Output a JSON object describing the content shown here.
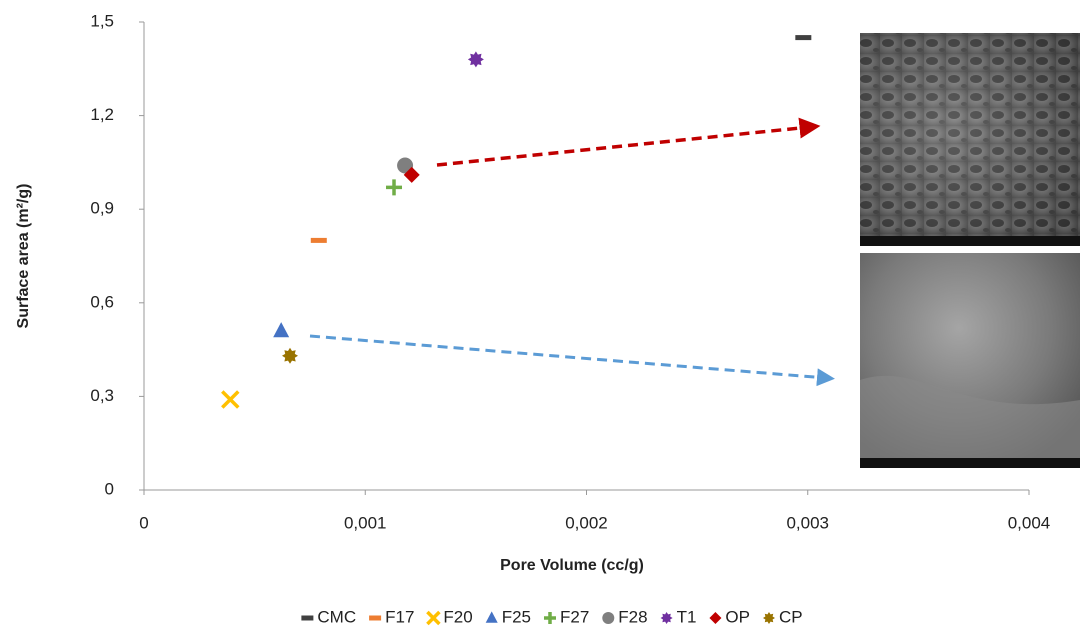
{
  "chart_data": {
    "type": "scatter",
    "x_label": "Pore Volume (cc/g)",
    "y_label": "Surface area (m²/g)",
    "xlim": [
      0,
      0.004
    ],
    "xticks": [
      0,
      {
        "value": 0.001,
        "label": "0,001"
      },
      {
        "value": 0.002,
        "label": "0,002"
      },
      {
        "value": 0.003,
        "label": "0,003"
      },
      {
        "value": 0.004,
        "label": "0,004"
      }
    ],
    "ylim": [
      0,
      1.5
    ],
    "yticks": [
      0,
      {
        "value": 0.3,
        "label": "0,3"
      },
      {
        "value": 0.6,
        "label": "0,6"
      },
      {
        "value": 0.9,
        "label": "0,9"
      },
      {
        "value": 1.2,
        "label": "1,2"
      },
      {
        "value": 1.5,
        "label": "1,5"
      }
    ],
    "legend": "bottom",
    "series": [
      {
        "name": "CMC",
        "color": "#404040",
        "marker": "dash",
        "x": [
          0.00298
        ],
        "values": [
          1.45
        ]
      },
      {
        "name": "F17",
        "color": "#ed7d31",
        "marker": "dash",
        "x": [
          0.00079
        ],
        "values": [
          0.8
        ]
      },
      {
        "name": "F20",
        "color": "#ffc000",
        "marker": "x",
        "x": [
          0.00039
        ],
        "values": [
          0.29
        ]
      },
      {
        "name": "F25",
        "color": "#4472c4",
        "marker": "triangle",
        "x": [
          0.00062
        ],
        "values": [
          0.51
        ]
      },
      {
        "name": "F27",
        "color": "#70ad47",
        "marker": "plus",
        "x": [
          0.00113
        ],
        "values": [
          0.97
        ]
      },
      {
        "name": "F28",
        "color": "#7f7f7f",
        "marker": "circle",
        "x": [
          0.00118
        ],
        "values": [
          1.04
        ]
      },
      {
        "name": "T1",
        "color": "#7030a0",
        "marker": "star",
        "x": [
          0.0015
        ],
        "values": [
          1.38
        ]
      },
      {
        "name": "OP",
        "color": "#c00000",
        "marker": "diamond",
        "x": [
          0.00121
        ],
        "values": [
          1.01
        ]
      },
      {
        "name": "CP",
        "color": "#997300",
        "marker": "star",
        "x": [
          0.00066
        ],
        "values": [
          0.43
        ]
      }
    ]
  }
}
